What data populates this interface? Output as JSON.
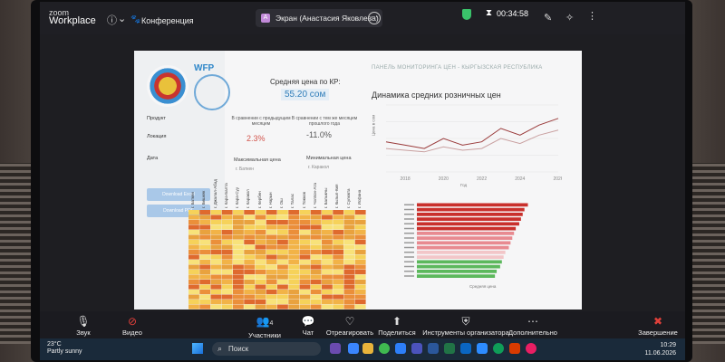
{
  "zoom": {
    "brand_top": "zoom",
    "brand_bottom": "Workplace",
    "meeting_title": "Конференция",
    "share_tab_label": "Экран (Анастасия Яковлева)",
    "share_tab_initial": "А",
    "timer": "00:34:58",
    "controls": [
      {
        "label": "Звук",
        "icon": "microphone-icon"
      },
      {
        "label": "Видео",
        "icon": "video-off-icon"
      },
      {
        "label": "Участники",
        "icon": "participants-icon",
        "count": "4"
      },
      {
        "label": "Чат",
        "icon": "chat-icon"
      },
      {
        "label": "Отреагировать",
        "icon": "heart-icon"
      },
      {
        "label": "Поделиться",
        "icon": "share-screen-icon"
      },
      {
        "label": "Инструменты организатора",
        "icon": "shield-icon"
      },
      {
        "label": "Дополнительно",
        "icon": "more-icon"
      },
      {
        "label": "Завершение",
        "icon": "end-call-icon"
      }
    ]
  },
  "slide": {
    "logo_text": "WFP",
    "panel_title": "ПАНЕЛЬ МОНИТОРИНГА ЦЕН - КЫРГЫЗСКАЯ РЕСПУБЛИКА",
    "sidebar": {
      "product_label": "Продукт",
      "location_label": "Локация",
      "date_label": "Дата",
      "btn1": "Download Excel",
      "btn2": "Download PDF"
    },
    "avg_price_title": "Средняя цена по КР:",
    "avg_price_value": "55.20 сом",
    "cmp1_text": "В сравнении с предыдущим месяцем",
    "cmp1_value": "2.3%",
    "cmp2_text": "В сравнении с тем же месяцем прошлого года",
    "cmp2_value": "-11.0%",
    "max_price_title": "Максимальная цена",
    "max_price_loc": "г. Баткен",
    "min_price_title": "Минимальная цена",
    "min_price_loc": "г. Каракол",
    "dynamics_title": "Динамика средних розничных цен",
    "x_axis_label": "Год",
    "y_axis_label": "Цена в сом",
    "bar_axis_label": "Средняя цена",
    "heat_cols": [
      "г. Баткен",
      "г. Бишкек",
      "г. Джалал-Абад",
      "г. Кара-Балта",
      "г. Кара-Суу",
      "г. Каракол",
      "г. Кербен",
      "г. Нарын",
      "г. Ош",
      "г. Талас",
      "г. Токмок",
      "г. Чолпон-Ата",
      "г. Балыкчы",
      "г. Кызыл-Кия",
      "г. Сулюкта",
      "г. Исфана"
    ]
  },
  "chart_data": [
    {
      "type": "line",
      "title": "Динамика средних розничных цен",
      "xlabel": "Год",
      "ylabel": "Цена в сом",
      "x": [
        2017,
        2018,
        2019,
        2020,
        2021,
        2022,
        2023,
        2024,
        2025,
        2026
      ],
      "series": [
        {
          "values": [
            48,
            46,
            44,
            50,
            46,
            48,
            56,
            52,
            58,
            62
          ]
        },
        {
          "values": [
            44,
            43,
            42,
            45,
            43,
            44,
            50,
            47,
            52,
            55
          ]
        }
      ]
    },
    {
      "type": "bar",
      "xlabel": "Средняя цена",
      "values": [
        64,
        62,
        61,
        60,
        59,
        57,
        56,
        55,
        54,
        53,
        51,
        50,
        49,
        48,
        46,
        45
      ]
    }
  ],
  "taskbar": {
    "weather_temp": "23°C",
    "weather_desc": "Partly sunny",
    "search": "Поиск",
    "time": "10:29",
    "date": "11.06.2026"
  }
}
